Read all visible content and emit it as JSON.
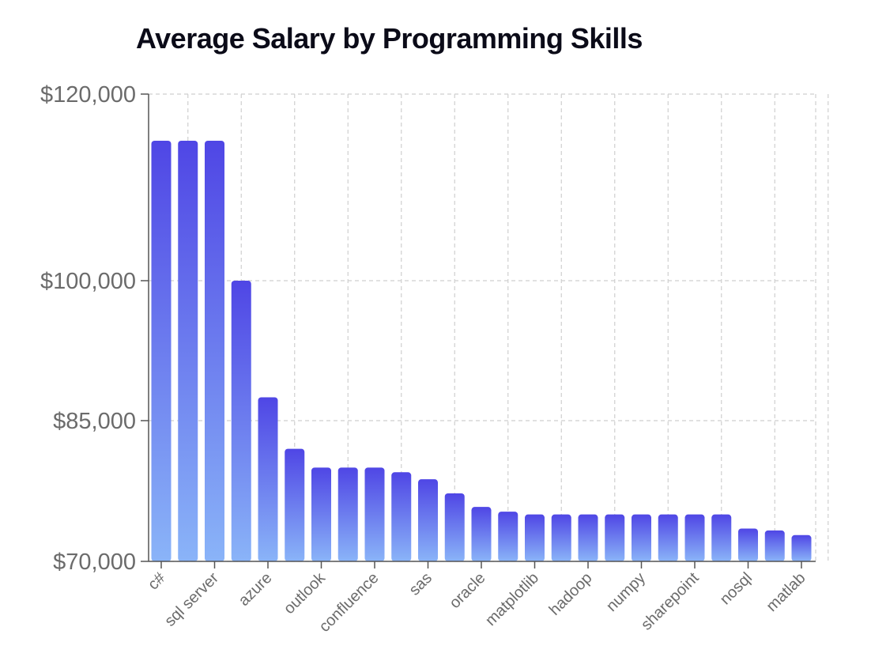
{
  "chart_data": {
    "type": "bar",
    "title": "Average Salary by Programming Skills",
    "xlabel": "",
    "ylabel": "",
    "categories": [
      "c#",
      "",
      "sql server",
      "",
      "azure",
      "",
      "outlook",
      "",
      "confluence",
      "",
      "sas",
      "",
      "oracle",
      "",
      "matplotlib",
      "",
      "hadoop",
      "",
      "numpy",
      "",
      "sharepoint",
      "",
      "nosql",
      "",
      "matlab"
    ],
    "values": [
      115000,
      115000,
      115000,
      100000,
      87500,
      82000,
      80000,
      80000,
      80000,
      79500,
      78750,
      77250,
      75800,
      75300,
      75000,
      75000,
      75000,
      75000,
      75000,
      75000,
      75000,
      75000,
      73500,
      73300,
      72800
    ],
    "y_ticks": [
      "$70,000",
      "$85,000",
      "$100,000",
      "$120,000"
    ],
    "y_tick_values": [
      70000,
      85000,
      100000,
      120000
    ],
    "ylim": [
      70000,
      120000
    ],
    "grid": true,
    "legend": "none",
    "colors": {
      "bar_top": "#4f46e5",
      "bar_bottom": "#8ab4f8",
      "grid": "#cfcfcf",
      "axis": "#555555",
      "tick_text": "#6b6b6b",
      "title": "#0b0b18"
    }
  }
}
